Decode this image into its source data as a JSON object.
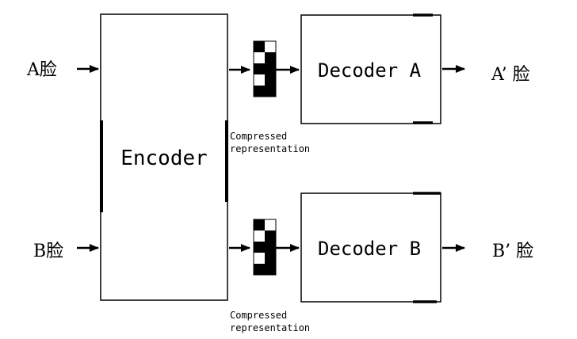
{
  "inputs": {
    "a_label": "A脸",
    "b_label": "B脸"
  },
  "encoder": {
    "label": "Encoder"
  },
  "decoders": {
    "a_label": "Decoder A",
    "b_label": "Decoder B"
  },
  "latent": {
    "top_caption_line1": "Compressed",
    "top_caption_line2": "representation",
    "bottom_caption_line1": "Compressed",
    "bottom_caption_line2": "representation",
    "pattern": [
      [
        0,
        1
      ],
      [
        1,
        0
      ],
      [
        0,
        0
      ],
      [
        1,
        0
      ],
      [
        0,
        0
      ]
    ]
  },
  "outputs": {
    "a_label": "A’ 脸",
    "b_label": "B’ 脸"
  }
}
